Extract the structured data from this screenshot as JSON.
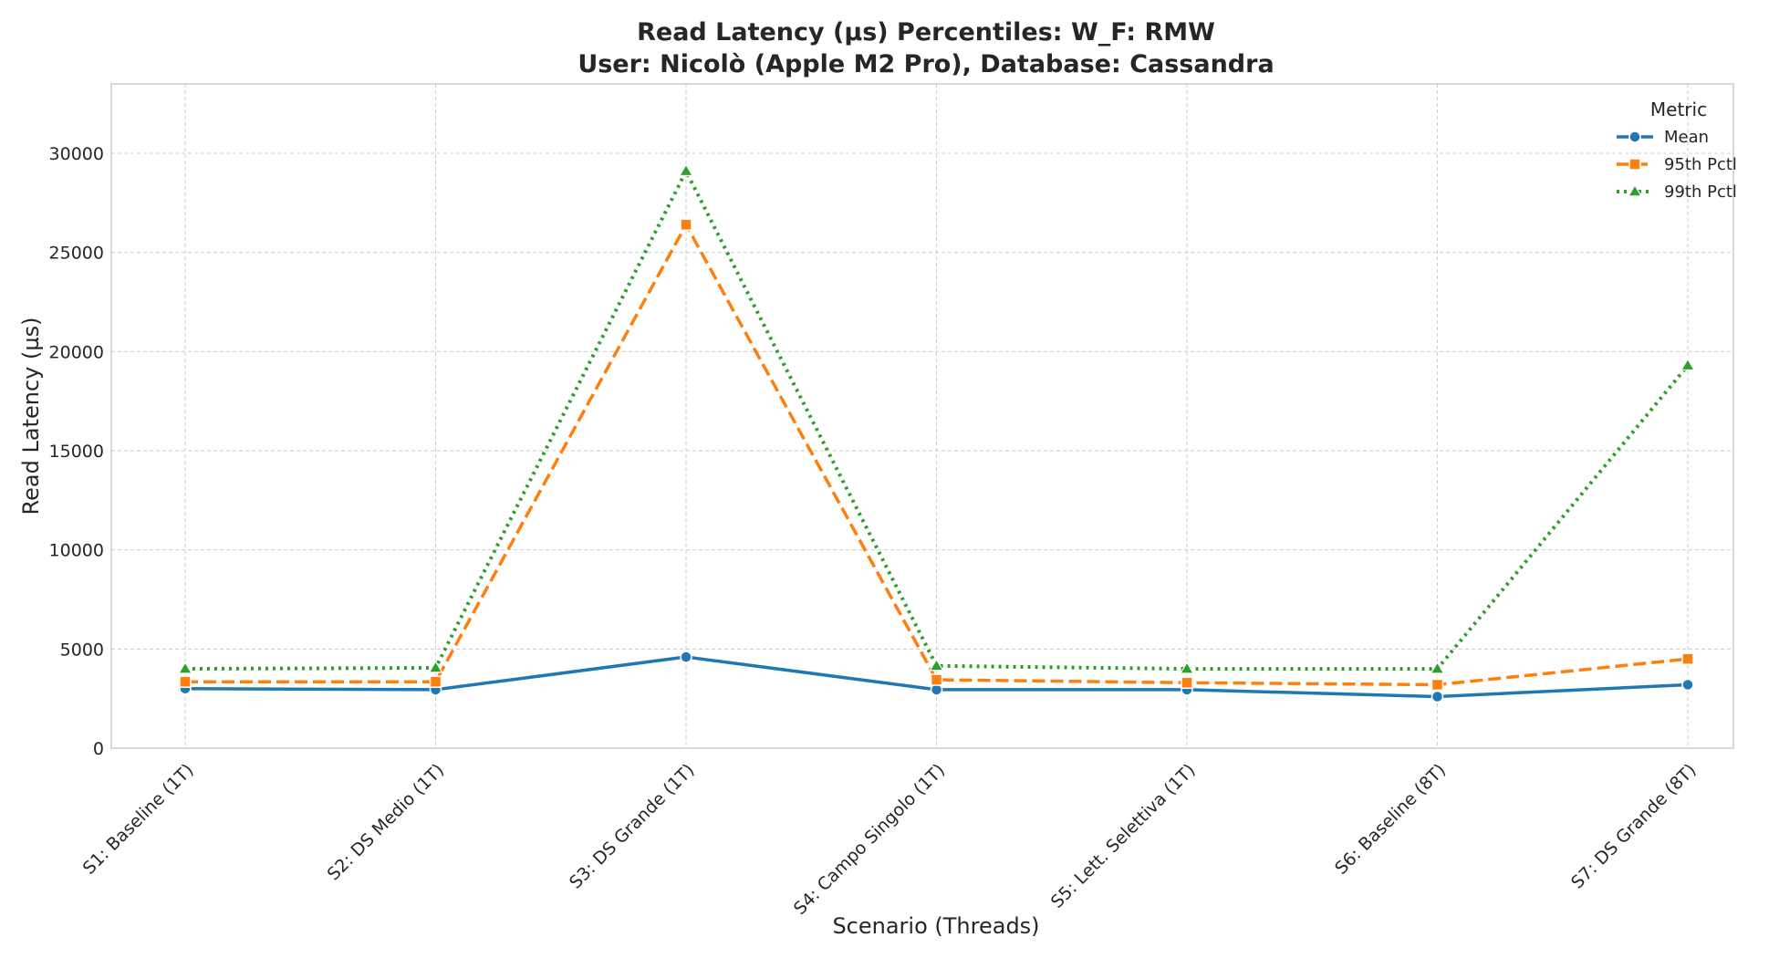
{
  "chart_data": {
    "type": "line",
    "title_line1": "Read Latency (µs) Percentiles: W_F: RMW",
    "title_line2": "User: Nicolò (Apple M2 Pro), Database: Cassandra",
    "xlabel": "Scenario (Threads)",
    "ylabel": "Read Latency (µs)",
    "ylim": [
      0,
      33500
    ],
    "yticks": [
      0,
      5000,
      10000,
      15000,
      20000,
      25000,
      30000
    ],
    "ytick_labels": [
      "0",
      "5000",
      "10000",
      "15000",
      "20000",
      "25000",
      "30000"
    ],
    "grid": true,
    "legend_title": "Metric",
    "legend_position": "top-right",
    "categories": [
      "S1: Baseline (1T)",
      "S2: DS Medio (1T)",
      "S3: DS Grande (1T)",
      "S4: Campo Singolo (1T)",
      "S5: Lett. Selettiva (1T)",
      "S6: Baseline (8T)",
      "S7: DS Grande (8T)"
    ],
    "series": [
      {
        "name": "Mean",
        "color": "#1f77b4",
        "marker": "circle",
        "dash": "solid",
        "values": [
          3000,
          2950,
          4600,
          2950,
          2950,
          2600,
          3200
        ]
      },
      {
        "name": "95th Pctl",
        "color": "#ff7f0e",
        "marker": "square",
        "dash": "dashed",
        "values": [
          3350,
          3350,
          26400,
          3450,
          3300,
          3200,
          4500
        ]
      },
      {
        "name": "99th Pctl",
        "color": "#2ca02c",
        "marker": "triangle",
        "dash": "dotted",
        "values": [
          4000,
          4050,
          29100,
          4150,
          4000,
          4000,
          19300
        ]
      }
    ]
  }
}
